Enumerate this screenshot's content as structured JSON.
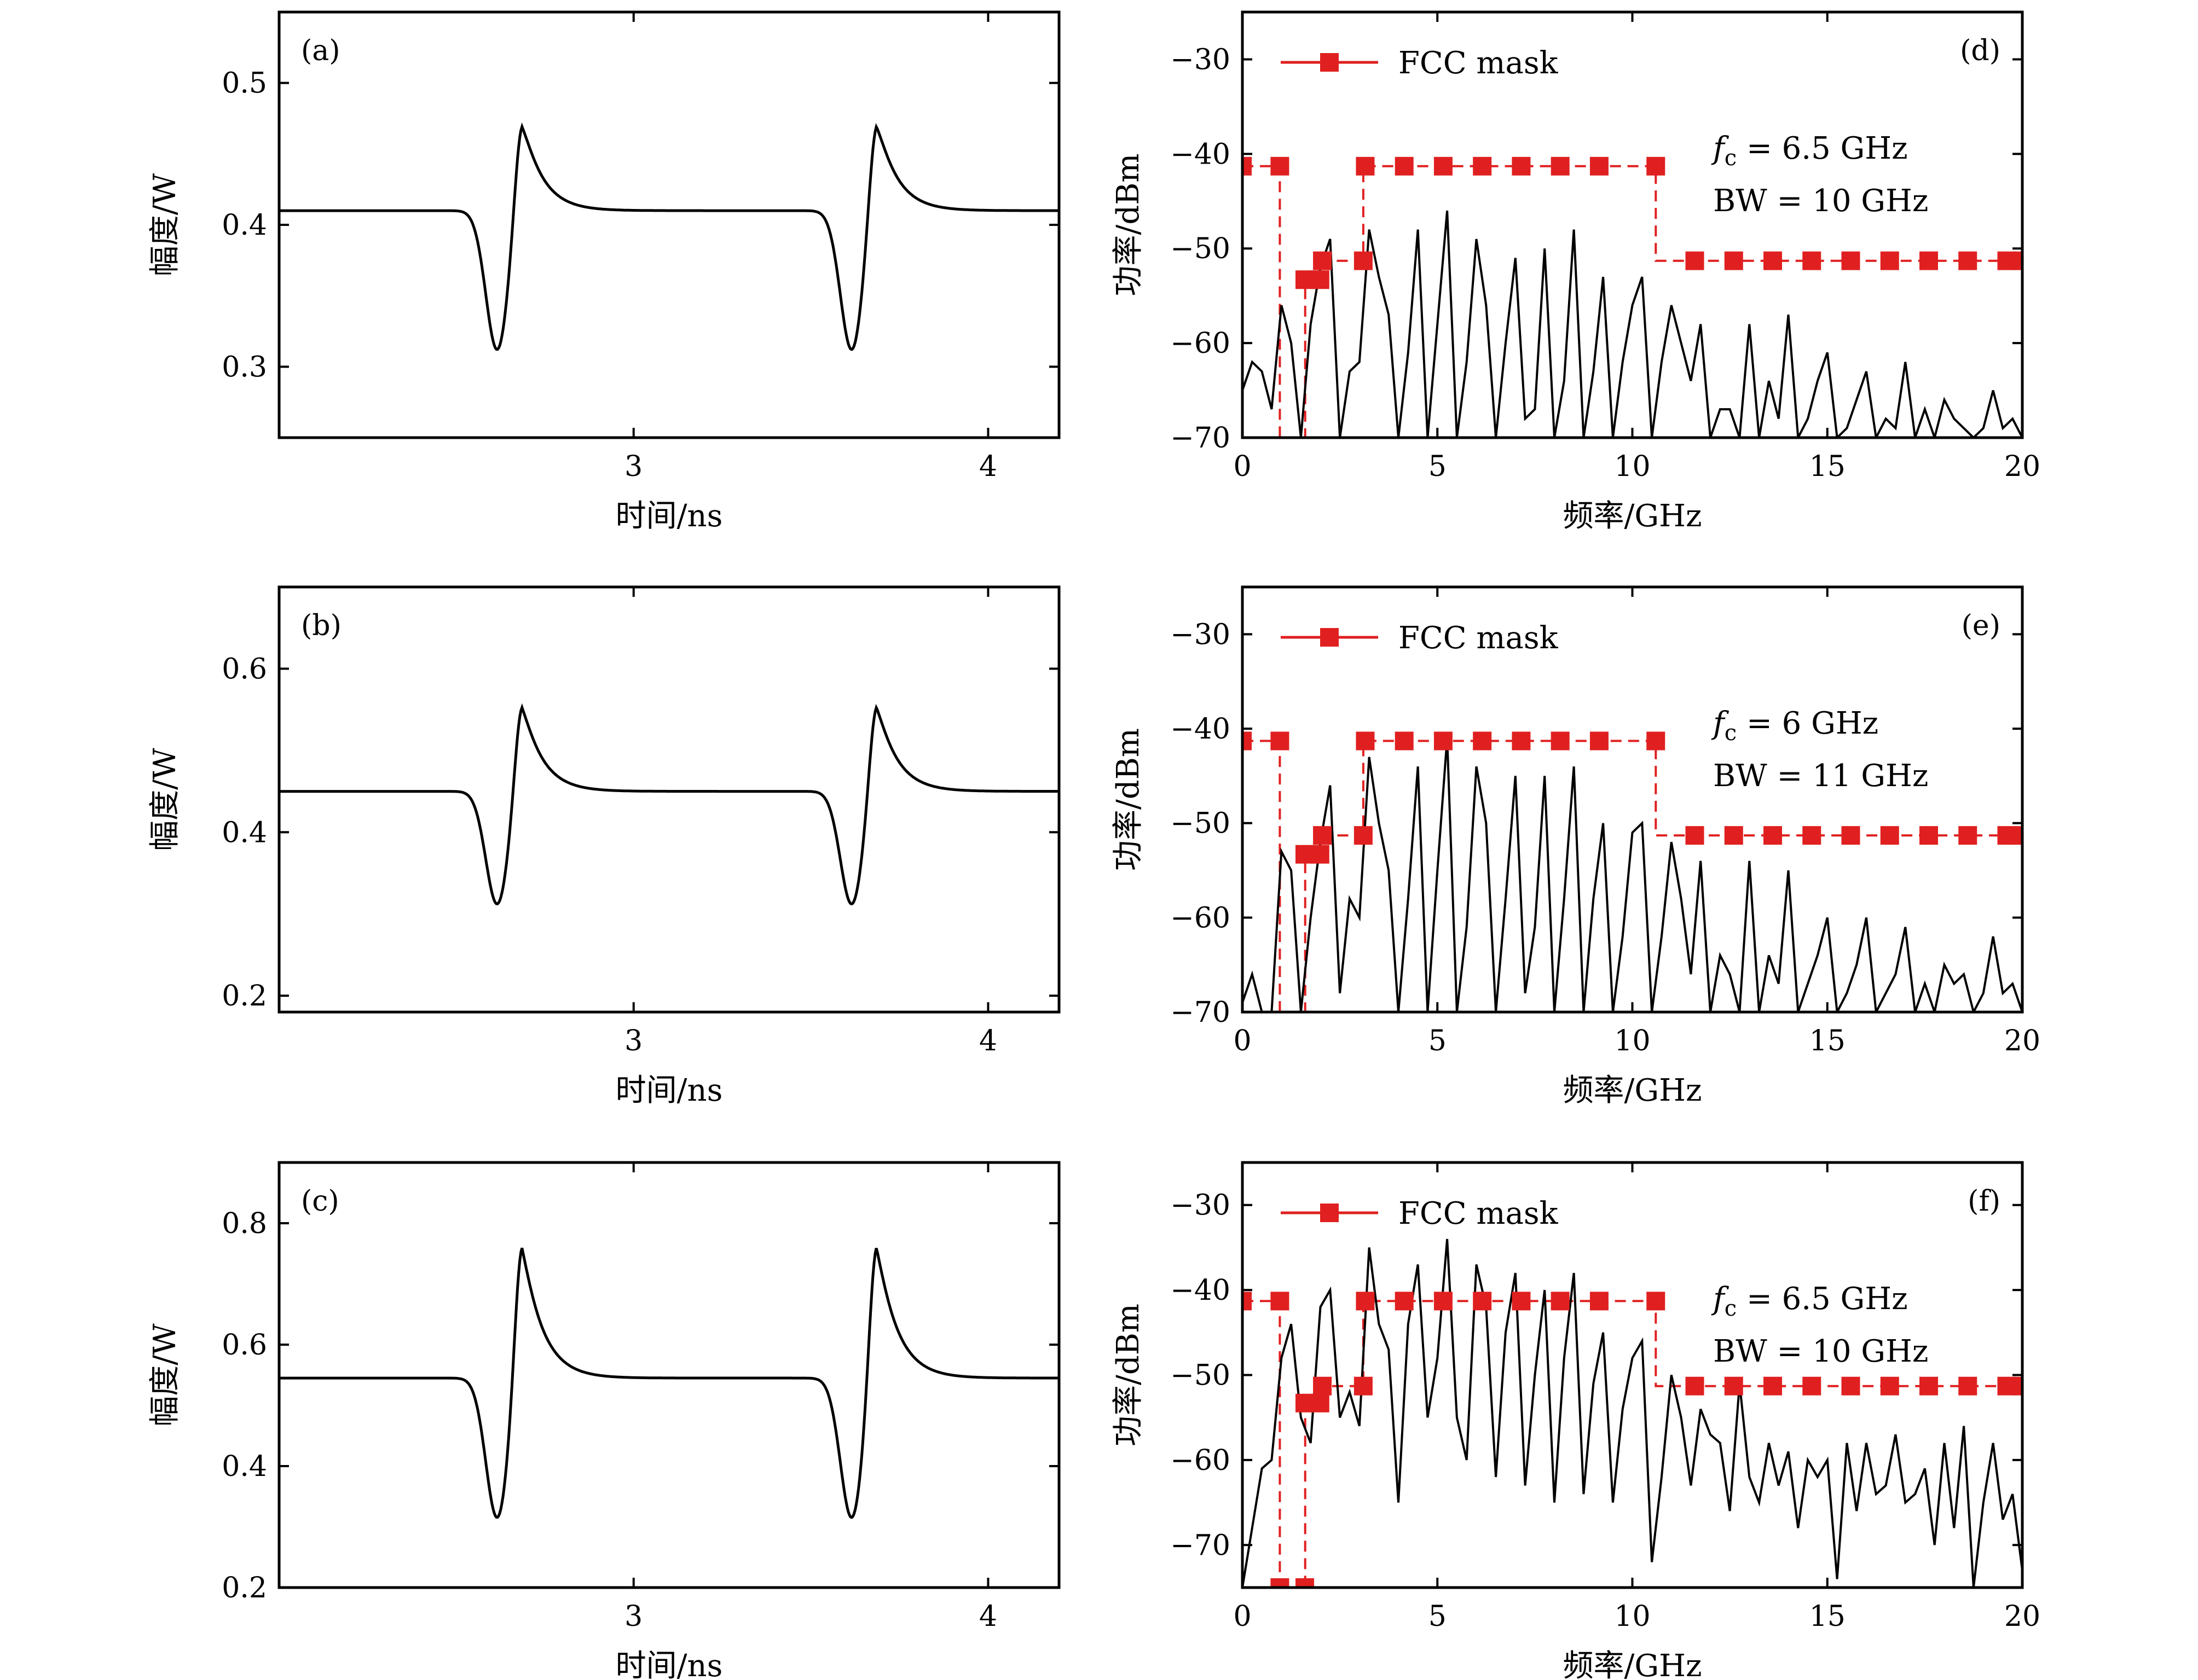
{
  "chart_data": [
    {
      "id": "a",
      "type": "line",
      "panel_label": "(a)",
      "xlabel": "时间/ns",
      "ylabel": "幅度/W",
      "xlim": [
        2.0,
        4.2
      ],
      "ylim": [
        0.25,
        0.55
      ],
      "xticks": [
        3,
        4
      ],
      "yticks": [
        0.3,
        0.4,
        0.5
      ],
      "pulse": {
        "baseline": 0.41,
        "peak": 0.478,
        "trough": 0.312,
        "centers": [
          2.65,
          3.65
        ]
      },
      "series": [
        {
          "values_note": "",
          "color": "#000000"
        }
      ]
    },
    {
      "id": "b",
      "type": "line",
      "panel_label": "(b)",
      "xlabel": "时间/ns",
      "ylabel": "幅度/W",
      "xlim": [
        2.0,
        4.2
      ],
      "ylim": [
        0.18,
        0.7
      ],
      "xticks": [
        3,
        4
      ],
      "yticks": [
        0.2,
        0.4,
        0.6
      ],
      "pulse": {
        "baseline": 0.45,
        "peak": 0.565,
        "trough": 0.312,
        "centers": [
          2.65,
          3.65
        ]
      },
      "series": [
        {
          "values_note": "",
          "color": "#000000"
        }
      ]
    },
    {
      "id": "c",
      "type": "line",
      "panel_label": "(c)",
      "xlabel": "时间/ns",
      "ylabel": "幅度/W",
      "xlim": [
        2.0,
        4.2
      ],
      "ylim": [
        0.2,
        0.9
      ],
      "xticks": [
        3,
        4
      ],
      "yticks": [
        0.2,
        0.4,
        0.6,
        0.8
      ],
      "pulse": {
        "baseline": 0.545,
        "peak": 0.78,
        "trough": 0.315,
        "centers": [
          2.65,
          3.65
        ]
      },
      "series": [
        {
          "values_note": "",
          "color": "#000000"
        }
      ]
    },
    {
      "id": "d",
      "type": "line",
      "panel_label": "(d)",
      "xlabel": "频率/GHz",
      "ylabel": "功率/dBm",
      "xlim": [
        0,
        20
      ],
      "ylim": [
        -70,
        -25
      ],
      "xticks": [
        0,
        5,
        10,
        15,
        20
      ],
      "yticks": [
        -30,
        -40,
        -50,
        -60,
        -70
      ],
      "annotation": {
        "fc_symbol": "f",
        "fc_sub": "c",
        "fc_value": " = 6.5 GHz",
        "bw": "BW = 10 GHz"
      },
      "legend": {
        "label": "FCC mask",
        "position": "top-left"
      },
      "mask_color": "#e02020",
      "mask": {
        "x": [
          0,
          0.96,
          0.96,
          1.61,
          1.61,
          1.99,
          1.99,
          3.1,
          3.1,
          10.6,
          10.6,
          20
        ],
        "y": [
          -41.3,
          -41.3,
          -70,
          -70,
          -53.3,
          -53.3,
          -51.3,
          -51.3,
          -41.3,
          -41.3,
          -51.3,
          -51.3
        ],
        "markers_x": [
          0,
          0.96,
          1.6,
          1.99,
          2.05,
          3.1,
          3.15,
          4.15,
          5.15,
          6.15,
          7.15,
          8.15,
          9.15,
          10.6,
          11.6,
          12.6,
          13.6,
          14.6,
          15.6,
          16.6,
          17.6,
          18.6,
          19.6,
          20
        ],
        "markers_y": [
          -41.3,
          -41.3,
          -53.3,
          -53.3,
          -51.3,
          -51.3,
          -41.3,
          -41.3,
          -41.3,
          -41.3,
          -41.3,
          -41.3,
          -41.3,
          -41.3,
          -51.3,
          -51.3,
          -51.3,
          -51.3,
          -51.3,
          -51.3,
          -51.3,
          -51.3,
          -51.3,
          -51.3
        ]
      },
      "spectrum": {
        "x": [
          0,
          0.25,
          0.5,
          0.75,
          1.0,
          1.25,
          1.5,
          1.75,
          2.0,
          2.25,
          2.5,
          2.75,
          3.0,
          3.25,
          3.5,
          3.75,
          4.0,
          4.25,
          4.5,
          4.75,
          5.0,
          5.25,
          5.5,
          5.75,
          6.0,
          6.25,
          6.5,
          6.75,
          7.0,
          7.25,
          7.5,
          7.75,
          8.0,
          8.25,
          8.5,
          8.75,
          9.0,
          9.25,
          9.5,
          9.75,
          10.0,
          10.25,
          10.5,
          10.75,
          11.0,
          11.25,
          11.5,
          11.75,
          12.0,
          12.25,
          12.5,
          12.75,
          13.0,
          13.25,
          13.5,
          13.75,
          14.0,
          14.25,
          14.5,
          14.75,
          15.0,
          15.25,
          15.5,
          15.75,
          16.0,
          16.25,
          16.5,
          16.75,
          17.0,
          17.25,
          17.5,
          17.75,
          18.0,
          18.25,
          18.5,
          18.75,
          19.0,
          19.25,
          19.5,
          19.75,
          20.0
        ],
        "y": [
          -65,
          -62,
          -63,
          -67,
          -56,
          -60,
          -70,
          -58,
          -52,
          -49,
          -70,
          -63,
          -62,
          -48,
          -53,
          -57,
          -70,
          -61,
          -48,
          -70,
          -58,
          -46,
          -70,
          -62,
          -49,
          -56,
          -70,
          -60,
          -51,
          -68,
          -67,
          -50,
          -70,
          -64,
          -48,
          -70,
          -63,
          -53,
          -70,
          -62,
          -56,
          -53,
          -70,
          -62,
          -56,
          -60,
          -64,
          -58,
          -70,
          -67,
          -67,
          -70,
          -58,
          -70,
          -64,
          -68,
          -57,
          -70,
          -68,
          -64,
          -61,
          -70,
          -69,
          -66,
          -63,
          -70,
          -68,
          -69,
          -62,
          -70,
          -67,
          -70,
          -66,
          -68,
          -69,
          -70,
          -69,
          -65,
          -69,
          -68,
          -70
        ]
      }
    },
    {
      "id": "e",
      "type": "line",
      "panel_label": "(e)",
      "xlabel": "频率/GHz",
      "ylabel": "功率/dBm",
      "xlim": [
        0,
        20
      ],
      "ylim": [
        -70,
        -25
      ],
      "xticks": [
        0,
        5,
        10,
        15,
        20
      ],
      "yticks": [
        -30,
        -40,
        -50,
        -60,
        -70
      ],
      "annotation": {
        "fc_symbol": "f",
        "fc_sub": "c",
        "fc_value": " = 6 GHz",
        "bw": "BW = 11 GHz"
      },
      "legend": {
        "label": "FCC mask",
        "position": "top-left"
      },
      "mask_color": "#e02020",
      "mask": {
        "x": [
          0,
          0.96,
          0.96,
          1.61,
          1.61,
          1.99,
          1.99,
          3.1,
          3.1,
          10.6,
          10.6,
          20
        ],
        "y": [
          -41.3,
          -41.3,
          -70,
          -70,
          -53.3,
          -53.3,
          -51.3,
          -51.3,
          -41.3,
          -41.3,
          -51.3,
          -51.3
        ],
        "markers_x": [
          0,
          0.96,
          1.6,
          1.99,
          2.05,
          3.1,
          3.15,
          4.15,
          5.15,
          6.15,
          7.15,
          8.15,
          9.15,
          10.6,
          11.6,
          12.6,
          13.6,
          14.6,
          15.6,
          16.6,
          17.6,
          18.6,
          19.6,
          20
        ],
        "markers_y": [
          -41.3,
          -41.3,
          -53.3,
          -53.3,
          -51.3,
          -51.3,
          -41.3,
          -41.3,
          -41.3,
          -41.3,
          -41.3,
          -41.3,
          -41.3,
          -41.3,
          -51.3,
          -51.3,
          -51.3,
          -51.3,
          -51.3,
          -51.3,
          -51.3,
          -51.3,
          -51.3,
          -51.3
        ]
      },
      "spectrum": {
        "x": [
          0,
          0.25,
          0.5,
          0.75,
          1.0,
          1.25,
          1.5,
          1.75,
          2.0,
          2.25,
          2.5,
          2.75,
          3.0,
          3.25,
          3.5,
          3.75,
          4.0,
          4.25,
          4.5,
          4.75,
          5.0,
          5.25,
          5.5,
          5.75,
          6.0,
          6.25,
          6.5,
          6.75,
          7.0,
          7.25,
          7.5,
          7.75,
          8.0,
          8.25,
          8.5,
          8.75,
          9.0,
          9.25,
          9.5,
          9.75,
          10.0,
          10.25,
          10.5,
          10.75,
          11.0,
          11.25,
          11.5,
          11.75,
          12.0,
          12.25,
          12.5,
          12.75,
          13.0,
          13.25,
          13.5,
          13.75,
          14.0,
          14.25,
          14.5,
          14.75,
          15.0,
          15.25,
          15.5,
          15.75,
          16.0,
          16.25,
          16.5,
          16.75,
          17.0,
          17.25,
          17.5,
          17.75,
          18.0,
          18.25,
          18.5,
          18.75,
          19.0,
          19.25,
          19.5,
          19.75,
          20.0
        ],
        "y": [
          -69,
          -66,
          -70,
          -70,
          -53,
          -55,
          -70,
          -60,
          -52,
          -46,
          -68,
          -58,
          -60,
          -43,
          -50,
          -55,
          -70,
          -58,
          -44,
          -70,
          -55,
          -41,
          -70,
          -61,
          -44,
          -50,
          -70,
          -58,
          -45,
          -68,
          -61,
          -45,
          -70,
          -58,
          -44,
          -70,
          -58,
          -50,
          -70,
          -62,
          -51,
          -50,
          -70,
          -62,
          -52,
          -58,
          -66,
          -54,
          -70,
          -64,
          -66,
          -70,
          -54,
          -70,
          -64,
          -67,
          -55,
          -70,
          -67,
          -64,
          -60,
          -70,
          -68,
          -65,
          -60,
          -70,
          -68,
          -66,
          -61,
          -70,
          -67,
          -70,
          -65,
          -67,
          -66,
          -70,
          -68,
          -62,
          -68,
          -67,
          -70
        ]
      }
    },
    {
      "id": "f",
      "type": "line",
      "panel_label": "(f)",
      "xlabel": "频率/GHz",
      "ylabel": "功率/dBm",
      "xlim": [
        0,
        20
      ],
      "ylim": [
        -75,
        -25
      ],
      "xticks": [
        0,
        5,
        10,
        15,
        20
      ],
      "yticks": [
        -30,
        -40,
        -50,
        -60,
        -70
      ],
      "annotation": {
        "fc_symbol": "f",
        "fc_sub": "c",
        "fc_value": " = 6.5 GHz",
        "bw": "BW = 10 GHz"
      },
      "legend": {
        "label": "FCC mask",
        "position": "top-left"
      },
      "mask_color": "#e02020",
      "mask": {
        "x": [
          0,
          0.96,
          0.96,
          1.61,
          1.61,
          1.99,
          1.99,
          3.1,
          3.1,
          10.6,
          10.6,
          20
        ],
        "y": [
          -41.3,
          -41.3,
          -75,
          -75,
          -53.3,
          -53.3,
          -51.3,
          -51.3,
          -41.3,
          -41.3,
          -51.3,
          -51.3
        ],
        "markers_x": [
          0,
          0.96,
          0.96,
          1.6,
          1.6,
          1.99,
          2.05,
          3.1,
          3.15,
          4.15,
          5.15,
          6.15,
          7.15,
          8.15,
          9.15,
          10.6,
          11.6,
          12.6,
          13.6,
          14.6,
          15.6,
          16.6,
          17.6,
          18.6,
          19.6,
          20
        ],
        "markers_y": [
          -41.3,
          -41.3,
          -75,
          -75,
          -53.3,
          -53.3,
          -51.3,
          -51.3,
          -41.3,
          -41.3,
          -41.3,
          -41.3,
          -41.3,
          -41.3,
          -41.3,
          -41.3,
          -51.3,
          -51.3,
          -51.3,
          -51.3,
          -51.3,
          -51.3,
          -51.3,
          -51.3,
          -51.3,
          -51.3
        ]
      },
      "spectrum": {
        "x": [
          0,
          0.25,
          0.5,
          0.75,
          1.0,
          1.25,
          1.5,
          1.75,
          2.0,
          2.25,
          2.5,
          2.75,
          3.0,
          3.25,
          3.5,
          3.75,
          4.0,
          4.25,
          4.5,
          4.75,
          5.0,
          5.25,
          5.5,
          5.75,
          6.0,
          6.25,
          6.5,
          6.75,
          7.0,
          7.25,
          7.5,
          7.75,
          8.0,
          8.25,
          8.5,
          8.75,
          9.0,
          9.25,
          9.5,
          9.75,
          10.0,
          10.25,
          10.5,
          10.75,
          11.0,
          11.25,
          11.5,
          11.75,
          12.0,
          12.25,
          12.5,
          12.75,
          13.0,
          13.25,
          13.5,
          13.75,
          14.0,
          14.25,
          14.5,
          14.75,
          15.0,
          15.25,
          15.5,
          15.75,
          16.0,
          16.25,
          16.5,
          16.75,
          17.0,
          17.25,
          17.5,
          17.75,
          18.0,
          18.25,
          18.5,
          18.75,
          19.0,
          19.25,
          19.5,
          19.75,
          20.0
        ],
        "y": [
          -75,
          -68,
          -61,
          -60,
          -48,
          -44,
          -55,
          -58,
          -42,
          -40,
          -55,
          -52,
          -56,
          -35,
          -44,
          -47,
          -65,
          -44,
          -37,
          -55,
          -48,
          -34,
          -55,
          -60,
          -37,
          -42,
          -62,
          -45,
          -38,
          -63,
          -50,
          -40,
          -65,
          -48,
          -38,
          -64,
          -51,
          -45,
          -65,
          -54,
          -48,
          -46,
          -72,
          -62,
          -50,
          -55,
          -63,
          -54,
          -57,
          -58,
          -66,
          -51,
          -62,
          -65,
          -58,
          -63,
          -59,
          -68,
          -60,
          -62,
          -60,
          -74,
          -58,
          -66,
          -58,
          -64,
          -63,
          -57,
          -65,
          -64,
          -61,
          -70,
          -58,
          -68,
          -56,
          -75,
          -65,
          -58,
          -67,
          -64,
          -73
        ]
      }
    }
  ]
}
